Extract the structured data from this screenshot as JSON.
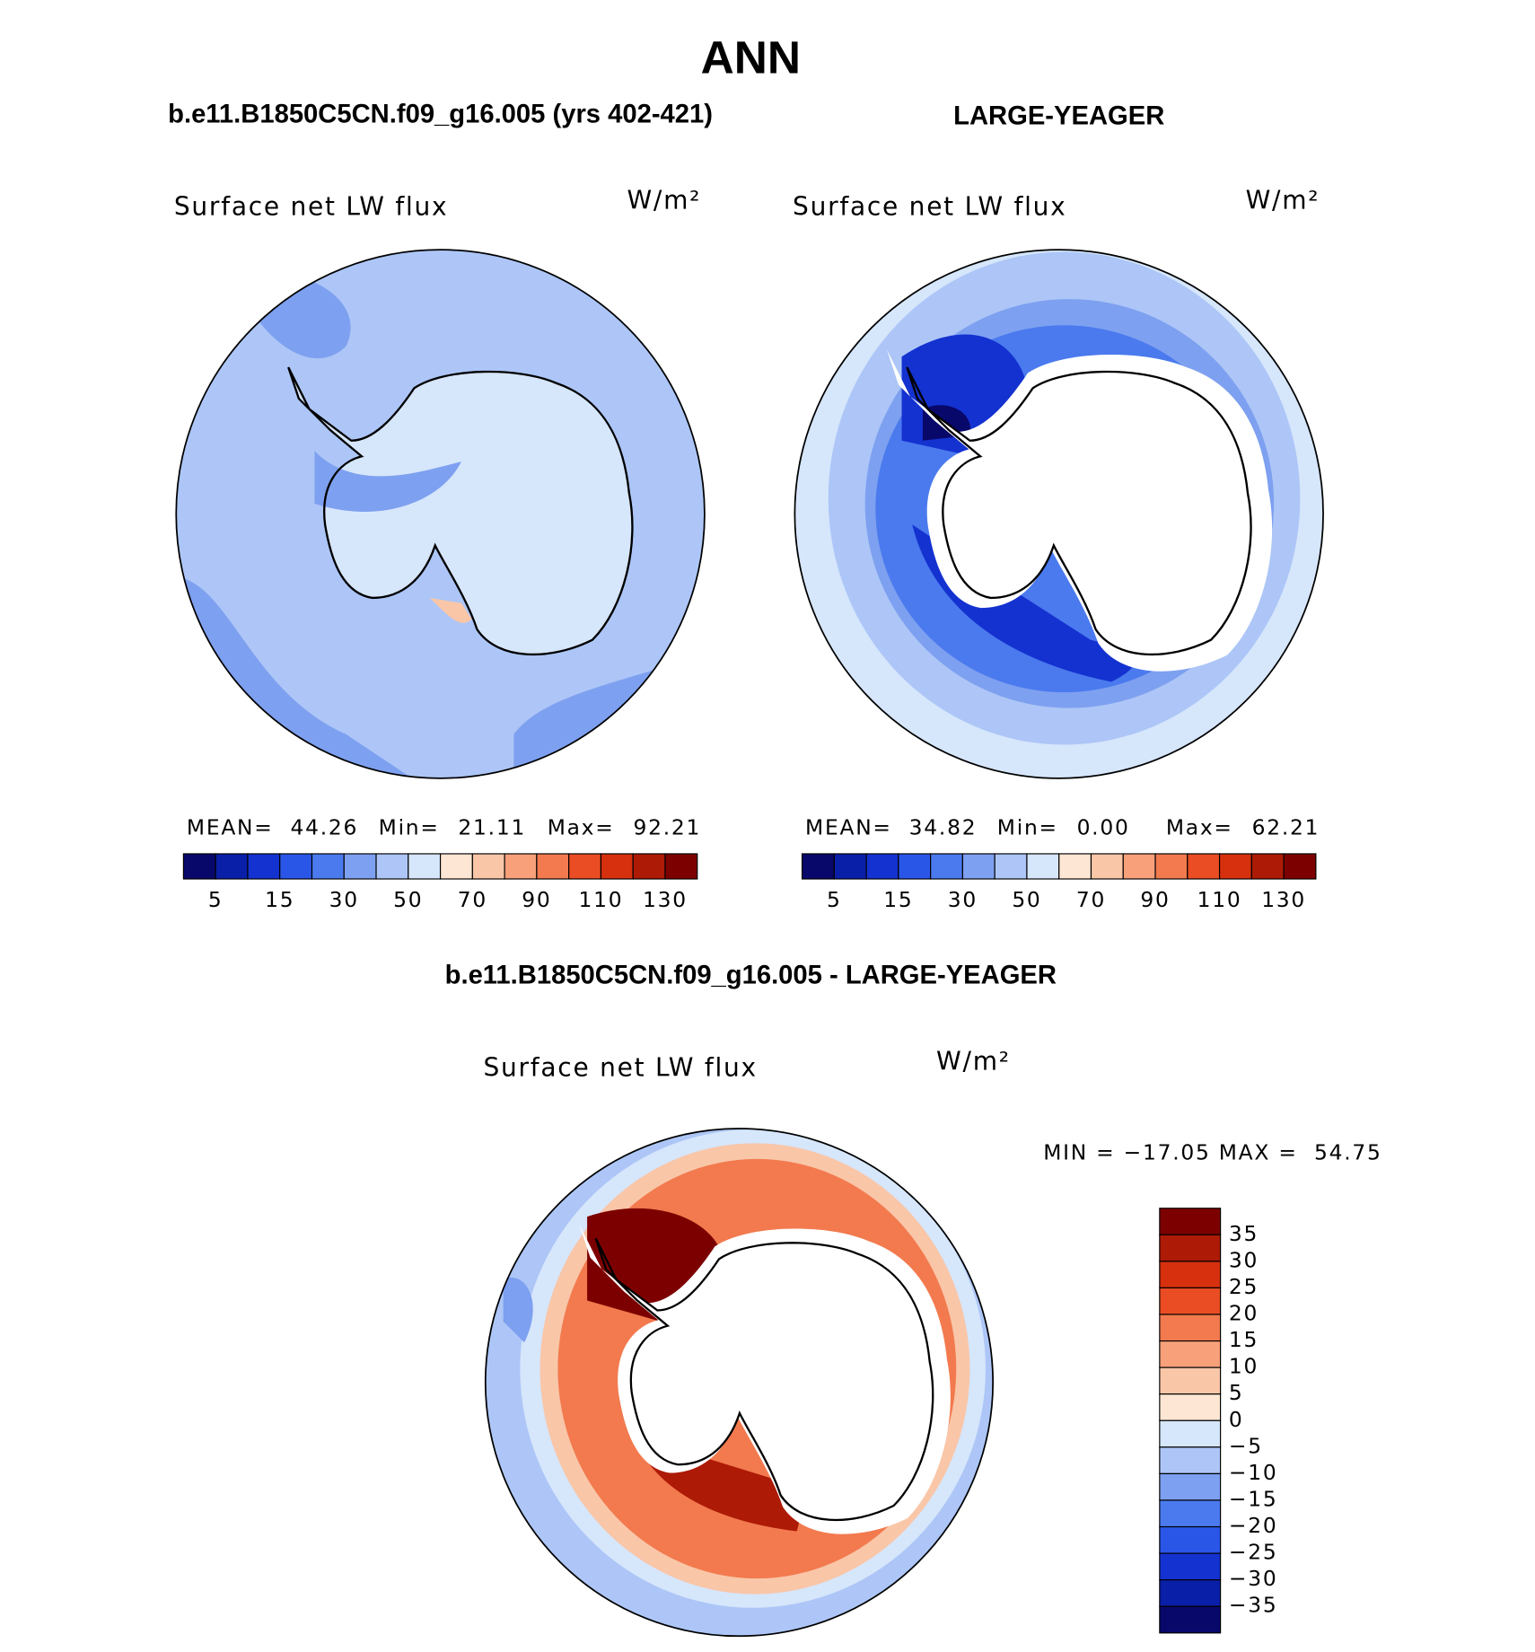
{
  "title": "ANN",
  "panels": [
    {
      "header": "b.e11.B1850C5CN.f09_g16.005 (yrs 402-421)",
      "map_title": "Surface net LW flux",
      "units": "W/m²",
      "stats": [
        "MEAN=",
        "44.26",
        "Min=",
        "21.11",
        "Max=",
        "92.21"
      ]
    },
    {
      "header": "LARGE-YEAGER",
      "map_title": "Surface net LW flux",
      "units": "W/m²",
      "stats": [
        "MEAN=",
        "34.82",
        "Min=",
        "0.00",
        "Max=",
        "62.21"
      ]
    }
  ],
  "top_colorbar": {
    "colors": [
      "#08086b",
      "#0a1fa8",
      "#1432d0",
      "#2a56e8",
      "#4a7aee",
      "#7ea0f0",
      "#adc6f7",
      "#d6e6fb",
      "#fde6d3",
      "#f9c6a8",
      "#f7a07a",
      "#f27a4e",
      "#ea4d24",
      "#d6300e",
      "#ad1a06",
      "#7d0000"
    ],
    "labels": [
      5,
      15,
      30,
      50,
      70,
      90,
      110,
      130
    ]
  },
  "difference": {
    "header": "b.e11.B1850C5CN.f09_g16.005 - LARGE-YEAGER",
    "map_title": "Surface net LW flux",
    "units": "W/m²",
    "range_text": "MIN = −17.05 MAX =  54.75",
    "colorbar": {
      "colors": [
        "#7d0000",
        "#ad1a06",
        "#d6300e",
        "#ea4d24",
        "#f27a4e",
        "#f7a07a",
        "#f9c6a8",
        "#fde6d3",
        "#d6e6fb",
        "#adc6f7",
        "#7ea0f0",
        "#4a7aee",
        "#2a56e8",
        "#1432d0",
        "#0a1fa8",
        "#08086b"
      ],
      "labels": [
        "35",
        "30",
        "25",
        "20",
        "15",
        "10",
        "5",
        "0",
        "−5",
        "−10",
        "−15",
        "−20",
        "−25",
        "−30",
        "−35"
      ]
    }
  }
}
